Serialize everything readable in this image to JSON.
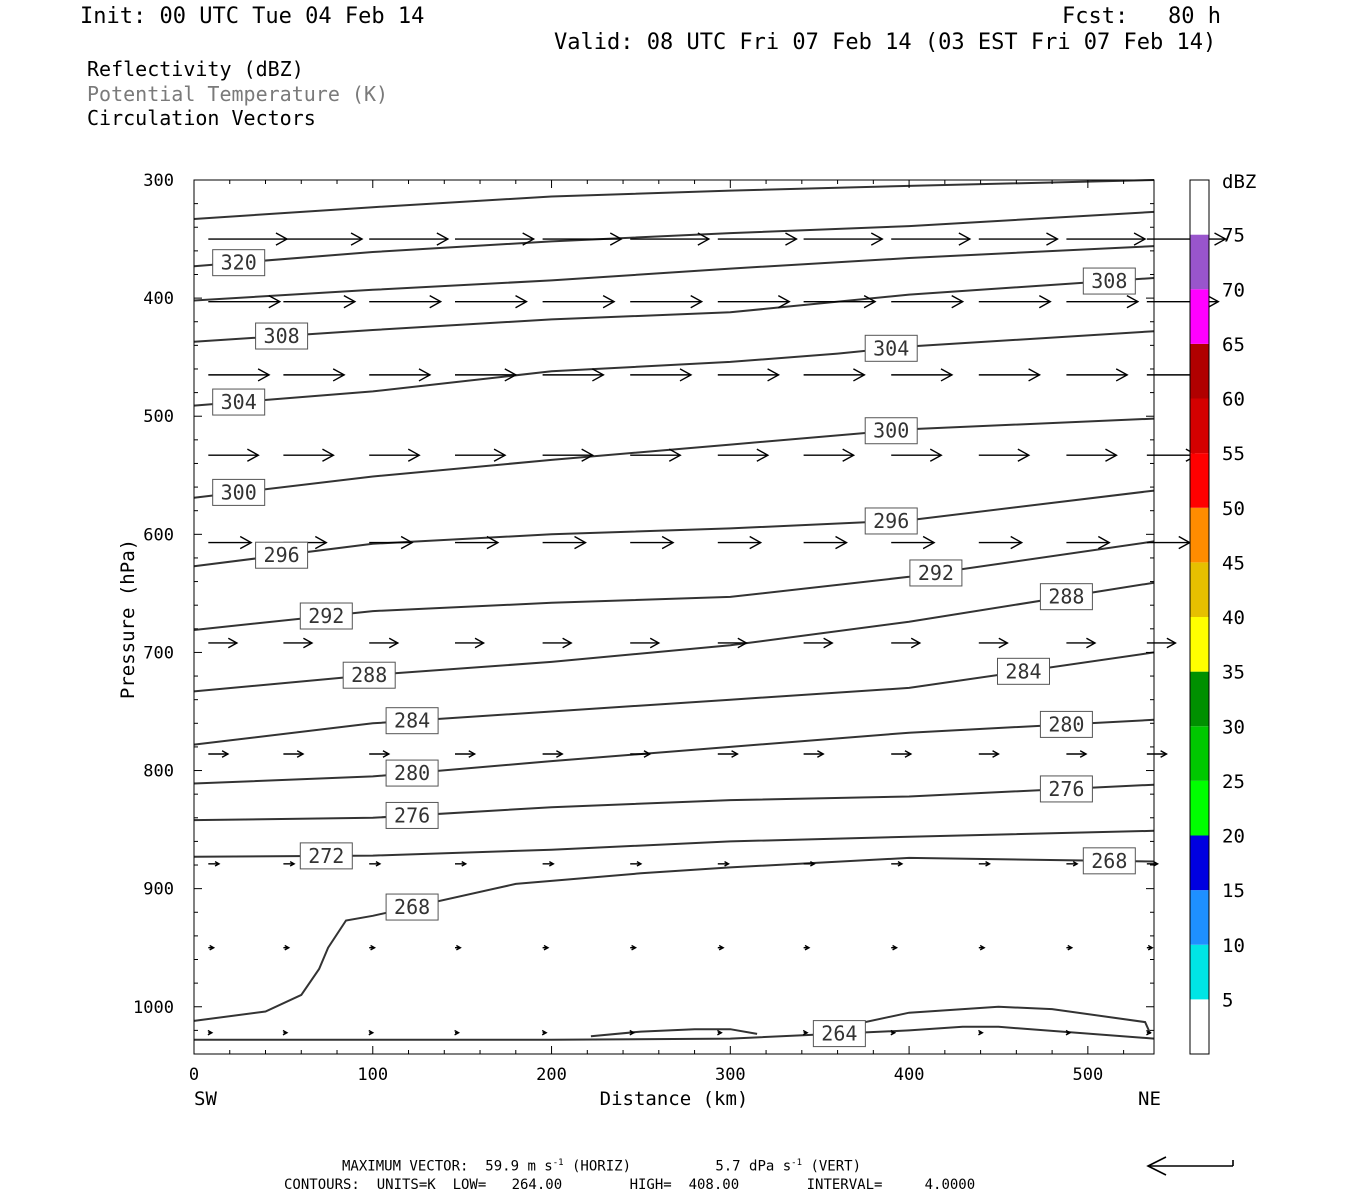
{
  "header": {
    "init": "Init: 00 UTC Tue 04 Feb 14",
    "fcst": "Fcst:   80 h",
    "valid": "Valid: 08 UTC Fri 07 Feb 14 (03 EST Fri 07 Feb 14)"
  },
  "legend": {
    "line1": "Reflectivity (dBZ)",
    "line2": "Potential Temperature (K)",
    "line3": "Circulation Vectors"
  },
  "footer": {
    "max_vector_label": "MAXIMUM VECTOR:",
    "max_vector_horiz": "59.9 m s",
    "max_vector_horiz_tail": " (HORIZ)",
    "max_vector_vert": "5.7 dPa s",
    "max_vector_vert_tail": " (VERT)",
    "exp": "-1",
    "contours": "CONTOURS:  UNITS=K  LOW=   264.00        HIGH=  408.00        INTERVAL=     4.0000"
  },
  "chart_data": {
    "type": "line",
    "xlabel": "Distance (km)",
    "ylabel": "Pressure (hPa)",
    "xlim": [
      0,
      537
    ],
    "ylim": [
      1040,
      300
    ],
    "x_ticks": [
      "0",
      "100",
      "200",
      "300",
      "400",
      "500"
    ],
    "y_ticks": [
      "300",
      "400",
      "500",
      "600",
      "700",
      "800",
      "900",
      "1000"
    ],
    "x_end_labels": {
      "left": "SW",
      "right": "NE"
    },
    "line_color": "#333333",
    "isentropes": [
      {
        "theta": 324,
        "label": "",
        "points": [
          [
            0,
            333
          ],
          [
            100,
            323
          ],
          [
            200,
            314
          ],
          [
            300,
            309
          ],
          [
            400,
            305
          ],
          [
            537,
            300
          ]
        ]
      },
      {
        "theta": 320,
        "label": "320",
        "points": [
          [
            0,
            373
          ],
          [
            100,
            361
          ],
          [
            200,
            352
          ],
          [
            300,
            345
          ],
          [
            400,
            339
          ],
          [
            537,
            327
          ]
        ]
      },
      {
        "theta": 312,
        "label": "",
        "points": [
          [
            0,
            402
          ],
          [
            100,
            393
          ],
          [
            200,
            385
          ],
          [
            300,
            375
          ],
          [
            400,
            366
          ],
          [
            537,
            356
          ]
        ]
      },
      {
        "theta": 308,
        "label": "308",
        "points": [
          [
            0,
            437
          ],
          [
            100,
            427
          ],
          [
            200,
            418
          ],
          [
            300,
            412
          ],
          [
            400,
            397
          ],
          [
            537,
            383
          ]
        ]
      },
      {
        "theta": 304,
        "label": "304",
        "points": [
          [
            0,
            491
          ],
          [
            100,
            479
          ],
          [
            200,
            462
          ],
          [
            300,
            454
          ],
          [
            360,
            447
          ],
          [
            400,
            441
          ],
          [
            537,
            428
          ]
        ]
      },
      {
        "theta": 300,
        "label": "300",
        "points": [
          [
            0,
            569
          ],
          [
            100,
            551
          ],
          [
            200,
            537
          ],
          [
            300,
            524
          ],
          [
            400,
            511
          ],
          [
            537,
            502
          ]
        ]
      },
      {
        "theta": 296,
        "label": "296",
        "points": [
          [
            0,
            627
          ],
          [
            100,
            608
          ],
          [
            200,
            600
          ],
          [
            300,
            595
          ],
          [
            400,
            588
          ],
          [
            537,
            563
          ]
        ]
      },
      {
        "theta": 292,
        "label": "292",
        "points": [
          [
            0,
            681
          ],
          [
            100,
            665
          ],
          [
            200,
            658
          ],
          [
            300,
            653
          ],
          [
            400,
            636
          ],
          [
            537,
            606
          ]
        ]
      },
      {
        "theta": 288,
        "label": "288",
        "points": [
          [
            0,
            733
          ],
          [
            100,
            719
          ],
          [
            200,
            708
          ],
          [
            300,
            694
          ],
          [
            400,
            674
          ],
          [
            537,
            641
          ]
        ]
      },
      {
        "theta": 284,
        "label": "284",
        "points": [
          [
            0,
            778
          ],
          [
            100,
            760
          ],
          [
            200,
            750
          ],
          [
            300,
            740
          ],
          [
            400,
            730
          ],
          [
            537,
            700
          ]
        ]
      },
      {
        "theta": 280,
        "label": "280",
        "points": [
          [
            0,
            811
          ],
          [
            100,
            805
          ],
          [
            200,
            792
          ],
          [
            300,
            780
          ],
          [
            400,
            768
          ],
          [
            537,
            757
          ]
        ]
      },
      {
        "theta": 276,
        "label": "276",
        "points": [
          [
            0,
            842
          ],
          [
            100,
            840
          ],
          [
            200,
            831
          ],
          [
            300,
            825
          ],
          [
            400,
            822
          ],
          [
            537,
            812
          ]
        ]
      },
      {
        "theta": 272,
        "label": "272",
        "points": [
          [
            0,
            873
          ],
          [
            100,
            872
          ],
          [
            200,
            867
          ],
          [
            300,
            860
          ],
          [
            400,
            856
          ],
          [
            537,
            851
          ]
        ]
      },
      {
        "theta": 268,
        "label": "268",
        "points": [
          [
            0,
            1012
          ],
          [
            40,
            1004
          ],
          [
            60,
            990
          ],
          [
            70,
            968
          ],
          [
            75,
            950
          ],
          [
            85,
            927
          ],
          [
            100,
            923
          ],
          [
            180,
            896
          ],
          [
            250,
            887
          ],
          [
            300,
            882
          ],
          [
            400,
            874
          ],
          [
            537,
            877
          ]
        ]
      },
      {
        "theta": 264,
        "label": "264",
        "points": [
          [
            0,
            1028
          ],
          [
            200,
            1028
          ],
          [
            300,
            1027
          ],
          [
            400,
            1020
          ],
          [
            430,
            1017
          ],
          [
            450,
            1017
          ],
          [
            537,
            1027
          ]
        ]
      },
      {
        "theta": 264,
        "label": "",
        "points": [
          [
            222,
            1025
          ],
          [
            250,
            1021
          ],
          [
            280,
            1019
          ],
          [
            300,
            1019
          ],
          [
            315,
            1023
          ]
        ]
      },
      {
        "theta": 264,
        "label": "",
        "points": [
          [
            360,
            1018
          ],
          [
            400,
            1005
          ],
          [
            450,
            1000
          ],
          [
            480,
            1002
          ],
          [
            532,
            1013
          ],
          [
            535,
            1023
          ]
        ]
      }
    ],
    "vectors": [
      {
        "level": 350,
        "u_kmeq": 44,
        "dp": 0
      },
      {
        "level": 403,
        "u_kmeq": 40,
        "dp": 0
      },
      {
        "level": 465,
        "u_kmeq": 34,
        "dp": 0
      },
      {
        "level": 533,
        "u_kmeq": 28,
        "dp": 0
      },
      {
        "level": 607,
        "u_kmeq": 24,
        "dp": 0
      },
      {
        "level": 692,
        "u_kmeq": 16,
        "dp": 0
      },
      {
        "level": 786,
        "u_kmeq": 11,
        "dp": 0
      },
      {
        "level": 879,
        "u_kmeq": 6,
        "dp": 0
      },
      {
        "level": 950,
        "u_kmeq": 3,
        "dp": 0
      },
      {
        "level": 1022,
        "u_kmeq": 2,
        "dp": 0
      }
    ],
    "vector_x": [
      8,
      50,
      98,
      146,
      195,
      244,
      293,
      341,
      390,
      439,
      488,
      533
    ],
    "colorbar": {
      "title": "dBZ",
      "levels": [
        "5",
        "10",
        "15",
        "20",
        "25",
        "30",
        "35",
        "40",
        "45",
        "50",
        "55",
        "60",
        "65",
        "70",
        "75"
      ],
      "colors": [
        "#00e5e5",
        "#1e90ff",
        "#0000e0",
        "#00ff00",
        "#00c800",
        "#009000",
        "#ffff00",
        "#e6c000",
        "#ff8c00",
        "#ff0000",
        "#d40000",
        "#b00000",
        "#ff00ff",
        "#9955cc",
        "#ffffff"
      ]
    }
  }
}
